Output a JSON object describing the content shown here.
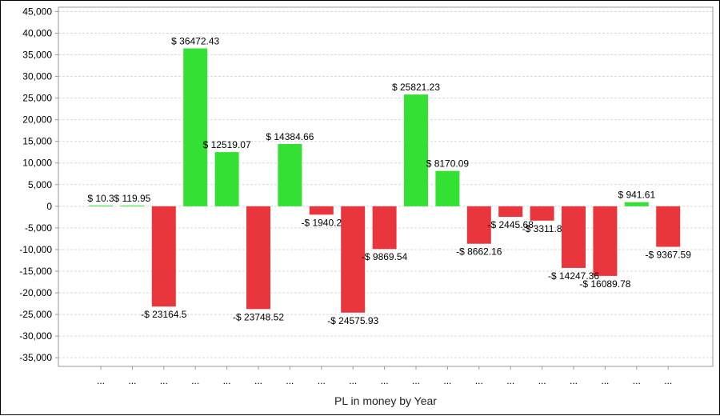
{
  "chart_data": {
    "type": "bar",
    "xlabel": "PL in money by Year",
    "ylabel": "",
    "ylim": [
      -37000,
      46000
    ],
    "yticks": [
      45000,
      40000,
      35000,
      30000,
      25000,
      20000,
      15000,
      10000,
      5000,
      0,
      -5000,
      -10000,
      -15000,
      -20000,
      -25000,
      -30000,
      -35000
    ],
    "ytick_labels": [
      "45,000",
      "40,000",
      "35,000",
      "30,000",
      "25,000",
      "20,000",
      "15,000",
      "10,000",
      "5,000",
      "0",
      "-5,000",
      "-10,000",
      "-15,000",
      "-20,000",
      "-25,000",
      "-30,000",
      "-35,000"
    ],
    "grid": true,
    "categories": [
      "...",
      "...",
      "...",
      "...",
      "...",
      "...",
      "...",
      "...",
      "...",
      "...",
      "...",
      "...",
      "...",
      "...",
      "...",
      "...",
      "...",
      "...",
      "..."
    ],
    "values": [
      10.3,
      119.95,
      -23164.5,
      36472.43,
      12519.07,
      -23748.52,
      14384.66,
      -1940.2,
      -24575.93,
      -9869.54,
      25821.23,
      8170.09,
      -8662.16,
      -2445.68,
      -3311.8,
      -14247.36,
      -16089.78,
      941.61,
      -9367.59
    ],
    "data_labels": [
      "$ 10.3",
      "$ 119.95",
      "-$ 23164.5",
      "$ 36472.43",
      "$ 12519.07",
      "-$ 23748.52",
      "$ 14384.66",
      "-$ 1940.2",
      "-$ 24575.93",
      "-$ 9869.54",
      "$ 25821.23",
      "$ 8170.09",
      "-$ 8662.16",
      "-$ 2445.68",
      "-$ 3311.8",
      "-$ 14247.36",
      "-$ 16089.78",
      "$ 941.61",
      "-$ 9367.59"
    ],
    "colors": {
      "positive": "#33e033",
      "negative": "#e8363c",
      "grid": "#d9d9d9",
      "axis": "#999999"
    }
  }
}
